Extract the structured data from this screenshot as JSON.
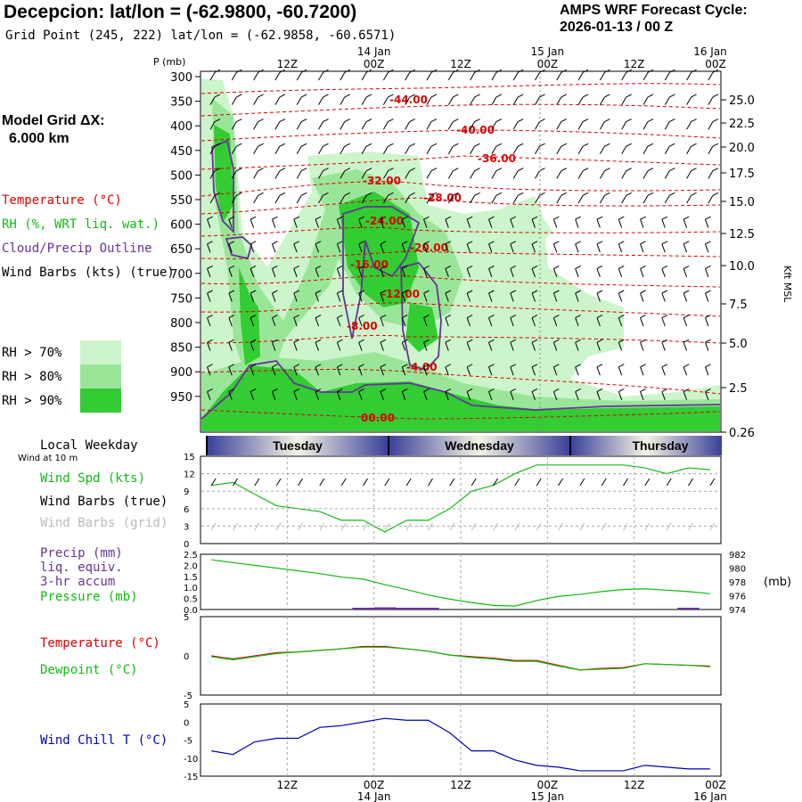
{
  "header": {
    "title": "Decepcion:  lat/lon = (-62.9800, -60.7200)",
    "grid_point": "Grid Point (245, 222) lat/lon = (-62.9858, -60.6571)",
    "cycle_line1": "AMPS WRF Forecast Cycle:",
    "cycle_line2": "2026-01-13 / 00  Z",
    "model_grid_line1": "Model Grid ΔX:",
    "model_grid_line2": "6.000 km"
  },
  "legend": {
    "temperature": "Temperature (°C)",
    "rh": "RH (%, WRT liq. wat.)",
    "cloud": "Cloud/Precip Outline",
    "barbs": "Wind Barbs (kts) (true)",
    "rh70": "RH > 70%",
    "rh80": "RH > 80%",
    "rh90": "RH > 90%"
  },
  "colors": {
    "rh70": "#ccf5cc",
    "rh80": "#99e699",
    "rh90": "#33cc33",
    "temp": "#dd0000",
    "cloud": "#663399",
    "green": "#11bb11",
    "blue": "#0000bb"
  },
  "time_axis": {
    "top_row1": [
      "14 Jan",
      "15 Jan",
      "16 Jan"
    ],
    "top_row2": [
      "12Z",
      "00Z",
      "12Z",
      "00Z",
      "12Z",
      "00Z"
    ],
    "bottom_row1": [
      "12Z",
      "00Z",
      "12Z",
      "00Z",
      "12Z",
      "00Z"
    ],
    "bottom_row2": [
      "14 Jan",
      "15 Jan",
      "16 Jan"
    ]
  },
  "upper_panel": {
    "p_label": "P (mb)",
    "right_label": "Kft MSL",
    "pressure_ticks": [
      "300",
      "350",
      "400",
      "450",
      "500",
      "550",
      "600",
      "650",
      "700",
      "750",
      "800",
      "850",
      "900",
      "950"
    ],
    "height_ticks": [
      "25.0",
      "22.5",
      "20.0",
      "17.5",
      "15.0",
      "12.5",
      "10.0",
      "7.5",
      "5.0",
      "2.5",
      "0.26"
    ],
    "temp_labels": [
      "-44.00",
      "-40.00",
      "-36.00",
      "-32.00",
      "-28.00",
      "-24.00",
      "-20.00",
      "-16.00",
      "-12.00",
      "-8.00",
      "-4.00",
      "00.00"
    ]
  },
  "weekday": {
    "label": "Local Weekday",
    "sub": "Wind at 10 m",
    "days": [
      "Tuesday",
      "Wednesday",
      "Thursday"
    ]
  },
  "wind_panel": {
    "label_spd": "Wind Spd (kts)",
    "label_barbs_true": "Wind Barbs (true)",
    "label_barbs_grid": "Wind Barbs (grid)",
    "y_ticks": [
      "15",
      "12",
      "9",
      "6",
      "3",
      "0"
    ]
  },
  "precip_panel": {
    "label1": "Precip (mm)",
    "label2": "liq. equiv.",
    "label3": "3-hr accum",
    "label4": "Pressure (mb)",
    "y_ticks": [
      "2.5",
      "2.0",
      "1.5",
      "1.0",
      "0.5",
      "0.0"
    ],
    "right_ticks": [
      "982",
      "980",
      "978",
      "976",
      "974"
    ],
    "right_unit": "(mb)"
  },
  "temp_panel": {
    "label_t": "Temperature (°C)",
    "label_td": "Dewpoint (°C)",
    "y_ticks": [
      "5",
      "0",
      "-5"
    ]
  },
  "chill_panel": {
    "label": "Wind Chill T (°C)",
    "y_ticks": [
      "5",
      "0",
      "-5",
      "-10",
      "-15"
    ]
  },
  "chart_data": [
    {
      "type": "line",
      "title": "Wind Spd (kts)",
      "x_hours": [
        0,
        3,
        6,
        9,
        12,
        15,
        18,
        21,
        24,
        27,
        30,
        33,
        36,
        39,
        42,
        45,
        48,
        51,
        54,
        57,
        60,
        63,
        66,
        69
      ],
      "ylim": [
        0,
        15
      ],
      "series": [
        {
          "name": "Wind Spd (kts)",
          "values": [
            10,
            10.5,
            8.5,
            6.5,
            6,
            5.5,
            4,
            4,
            2,
            4,
            4,
            6,
            9,
            10,
            12,
            13.5,
            13.5,
            13.5,
            13.5,
            13.5,
            13,
            12,
            13,
            12.7
          ]
        }
      ]
    },
    {
      "type": "line",
      "title": "Pressure (mb)",
      "x_hours": [
        0,
        3,
        6,
        9,
        12,
        15,
        18,
        21,
        24,
        27,
        30,
        33,
        36,
        39,
        42,
        45,
        48,
        51,
        54,
        57,
        60,
        63,
        66,
        69
      ],
      "ylim": [
        974,
        982
      ],
      "series": [
        {
          "name": "Pressure (mb)",
          "values": [
            981.2,
            980.8,
            980.4,
            980.0,
            979.6,
            979.2,
            978.7,
            978.4,
            977.6,
            976.9,
            976.1,
            975.5,
            975.0,
            974.6,
            974.5,
            975.3,
            975.9,
            976.2,
            976.6,
            976.9,
            977.0,
            976.8,
            976.6,
            976.3
          ]
        },
        {
          "name": "Precip (mm)",
          "values": [
            0,
            0,
            0,
            0,
            0,
            0,
            0,
            0.02,
            0.1,
            0.05,
            0.02,
            0,
            0,
            0,
            0,
            0,
            0,
            0,
            0,
            0,
            0,
            0,
            0.02,
            0
          ]
        }
      ]
    },
    {
      "type": "line",
      "title": "Temperature / Dewpoint",
      "x_hours": [
        0,
        3,
        6,
        9,
        12,
        15,
        18,
        21,
        24,
        27,
        30,
        33,
        36,
        39,
        42,
        45,
        48,
        51,
        54,
        57,
        60,
        63,
        66,
        69
      ],
      "ylim": [
        -5,
        5
      ],
      "series": [
        {
          "name": "Temperature (°C)",
          "values": [
            0,
            -0.4,
            0,
            0.4,
            0.5,
            0.7,
            0.9,
            1.2,
            1.2,
            0.9,
            0.6,
            0.1,
            -0.1,
            -0.3,
            -0.6,
            -0.6,
            -1.2,
            -1.8,
            -1.6,
            -1.5,
            -1.0,
            -1.1,
            -1.2,
            -1.3
          ]
        },
        {
          "name": "Dewpoint (°C)",
          "values": [
            -0.1,
            -0.5,
            -0.1,
            0.3,
            0.5,
            0.7,
            0.9,
            1.1,
            1.1,
            0.9,
            0.6,
            0.1,
            -0.2,
            -0.4,
            -0.7,
            -0.7,
            -1.3,
            -1.8,
            -1.7,
            -1.6,
            -1.0,
            -1.1,
            -1.2,
            -1.4
          ]
        }
      ]
    },
    {
      "type": "line",
      "title": "Wind Chill T (°C)",
      "x_hours": [
        0,
        3,
        6,
        9,
        12,
        15,
        18,
        21,
        24,
        27,
        30,
        33,
        36,
        39,
        42,
        45,
        48,
        51,
        54,
        57,
        60,
        63,
        66,
        69
      ],
      "ylim": [
        -15,
        5
      ],
      "series": [
        {
          "name": "Wind Chill T (°C)",
          "values": [
            -8,
            -9,
            -5.5,
            -4.5,
            -4.5,
            -1.5,
            -1,
            0,
            1,
            0.5,
            0.5,
            -3,
            -8,
            -8,
            -10.5,
            -12,
            -12.5,
            -13.5,
            -13.5,
            -13.5,
            -12,
            -12.5,
            -13,
            -13
          ]
        }
      ]
    }
  ]
}
